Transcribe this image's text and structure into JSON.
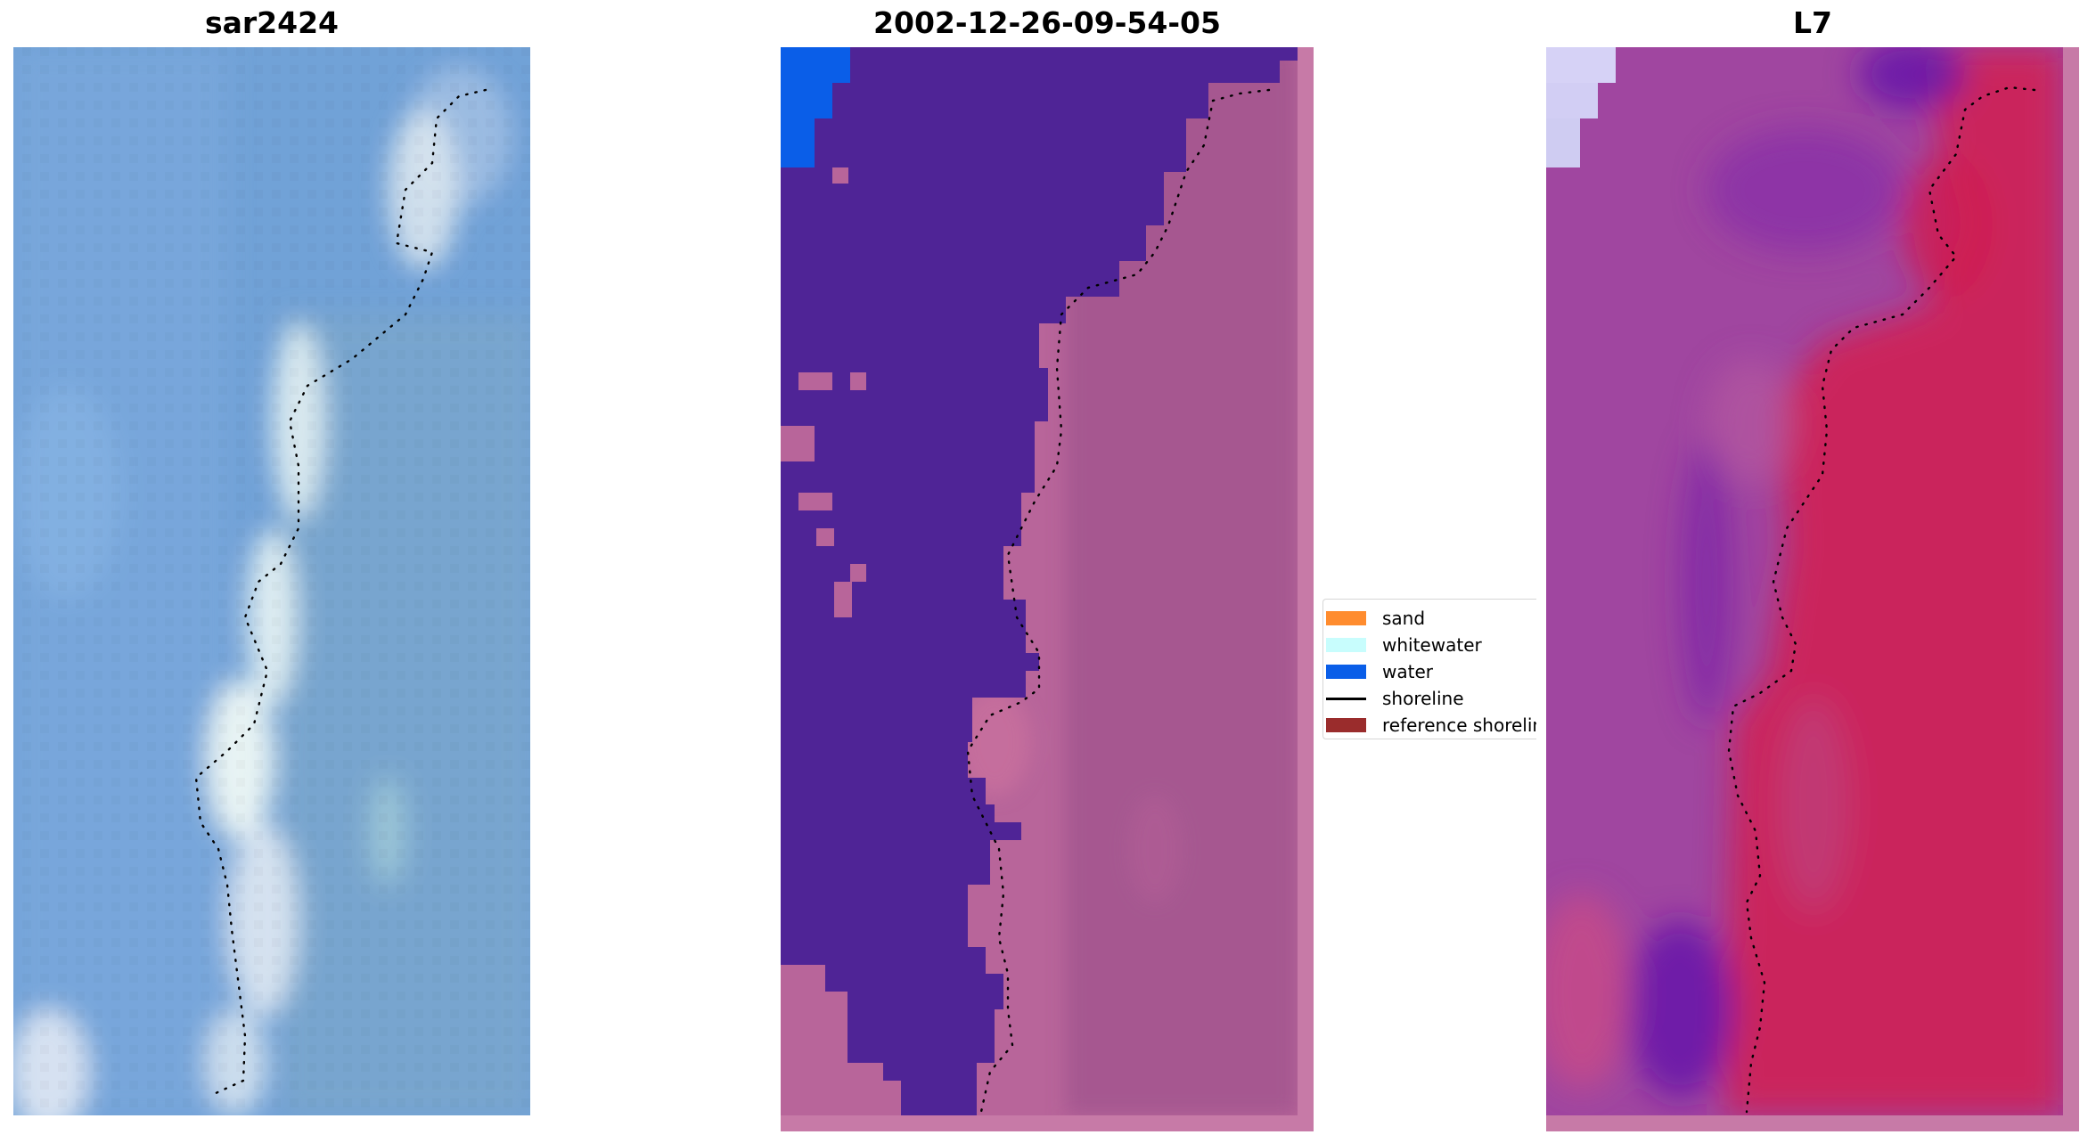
{
  "panels": {
    "rgb": {
      "title": "sar2424"
    },
    "classified": {
      "title": "2002-12-26-09-54-05"
    },
    "index": {
      "title": "L7"
    }
  },
  "legend": {
    "items": [
      {
        "label": "sand",
        "color": "#ff8c2e",
        "kind": "patch"
      },
      {
        "label": "whitewater",
        "color": "#c8fdfd",
        "kind": "patch"
      },
      {
        "label": "water",
        "color": "#0a5ee8",
        "kind": "patch"
      },
      {
        "label": "shoreline",
        "color": "#000000",
        "kind": "line"
      },
      {
        "label": "reference shoreline",
        "color": "#9a2c2c",
        "kind": "patch"
      }
    ]
  },
  "colors": {
    "sea_rgb": "#6a9fd6",
    "surf_white": "#e8f4f4",
    "classified_water": "#4f2496",
    "classified_land": "#b86a9c",
    "classified_blue": "#0a5ee8",
    "index_land": "#c8204e",
    "index_water": "#9a3fa8",
    "index_deep": "#6a1aa8",
    "shoreline_points": "#000000"
  }
}
